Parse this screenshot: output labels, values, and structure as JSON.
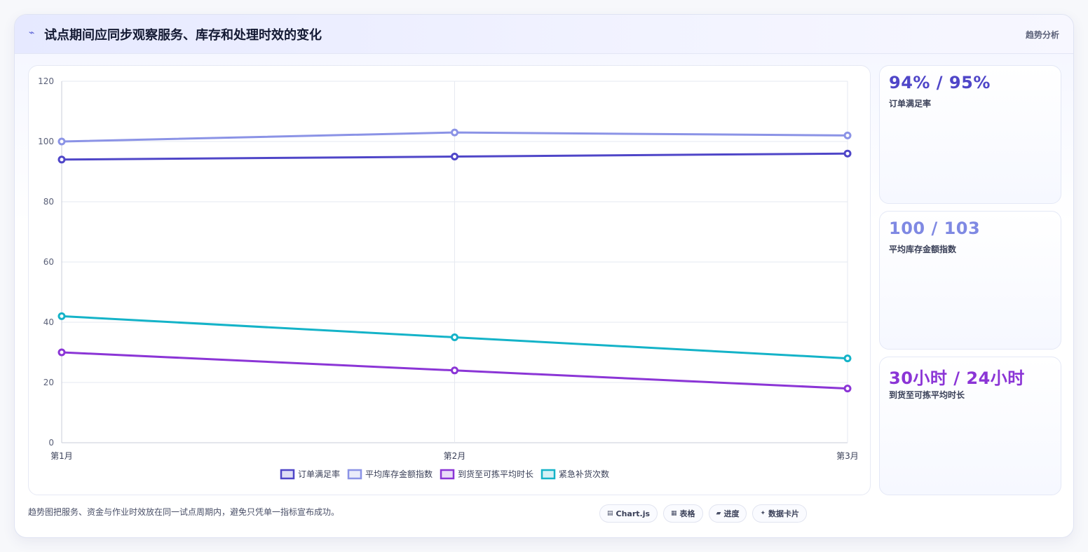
{
  "header": {
    "title": "试点期间应同步观察服务、库存和处理时效的变化",
    "tag": "趋势分析"
  },
  "chart_data": {
    "type": "line",
    "categories": [
      "第1月",
      "第2月",
      "第3月"
    ],
    "ylim": [
      0,
      120
    ],
    "yticks": [
      0,
      20,
      40,
      60,
      80,
      100,
      120
    ],
    "grid": true,
    "legend_position": "bottom",
    "series": [
      {
        "name": "订单满足率",
        "values": [
          94,
          95,
          96
        ],
        "color": "#4f46c8"
      },
      {
        "name": "平均库存金额指数",
        "values": [
          100,
          103,
          102
        ],
        "color": "#8b93e6"
      },
      {
        "name": "到货至可拣平均时长",
        "values": [
          30,
          24,
          18
        ],
        "color": "#8b35d6"
      },
      {
        "name": "紧急补货次数",
        "values": [
          42,
          35,
          28
        ],
        "color": "#14b3c8"
      }
    ]
  },
  "stats": [
    {
      "value": "94% / 95%",
      "label": "订单满足率",
      "color": "#4f46c8"
    },
    {
      "value": "100 / 103",
      "label": "平均库存金额指数",
      "color": "#7f89e3"
    },
    {
      "value": "30小时 / 24小时",
      "label": "到货至可拣平均时长",
      "color": "#8b35d6"
    }
  ],
  "footnote": "趋势图把服务、资金与作业时效放在同一试点周期内，避免只凭单一指标宣布成功。",
  "chips": [
    {
      "icon": "▤",
      "label": "Chart.js"
    },
    {
      "icon": "▦",
      "label": "表格"
    },
    {
      "icon": "▰",
      "label": "进度"
    },
    {
      "icon": "✦",
      "label": "数据卡片"
    }
  ]
}
